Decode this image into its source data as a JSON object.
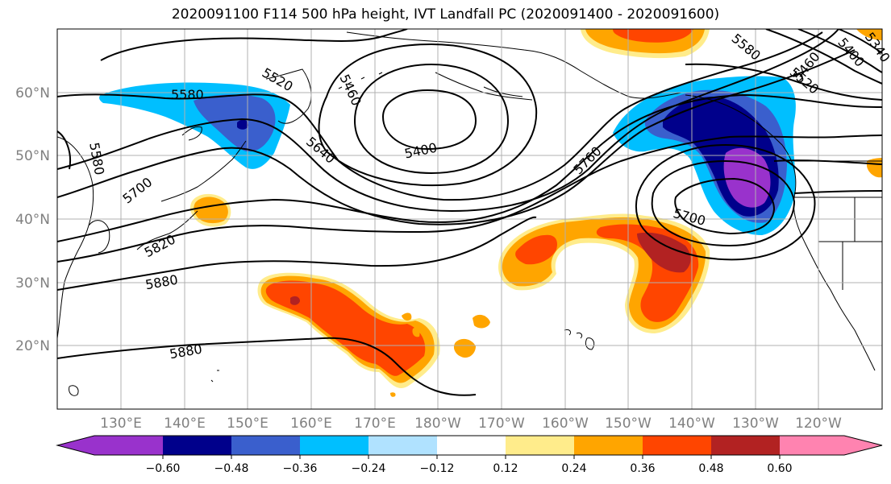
{
  "title": "2020091100 F114 500 hPa height, IVT Landfall PC (2020091400 - 2020091600)",
  "map": {
    "lat_labels": [
      "60°N",
      "50°N",
      "40°N",
      "30°N",
      "20°N"
    ],
    "lon_labels": [
      "130°E",
      "140°E",
      "150°E",
      "160°E",
      "170°E",
      "180°W",
      "170°W",
      "160°W",
      "150°W",
      "140°W",
      "130°W",
      "120°W"
    ],
    "contour_labels": [
      "5580",
      "5520",
      "5460",
      "5400",
      "5640",
      "5700",
      "5820",
      "5880",
      "5880",
      "5580",
      "5760",
      "5700",
      "5580",
      "5520",
      "5460",
      "5400",
      "5340"
    ]
  },
  "colorbar": {
    "colors": [
      "#9932cc",
      "#00008b",
      "#3a5fcd",
      "#00bfff",
      "#b0e2ff",
      "#ffffff",
      "#ffec8b",
      "#ffa500",
      "#ff4500",
      "#b22222",
      "#ff83b0"
    ],
    "tick_labels": [
      "−0.60",
      "−0.48",
      "−0.36",
      "−0.24",
      "−0.12",
      "0.12",
      "0.24",
      "0.36",
      "0.48",
      "0.60"
    ]
  }
}
